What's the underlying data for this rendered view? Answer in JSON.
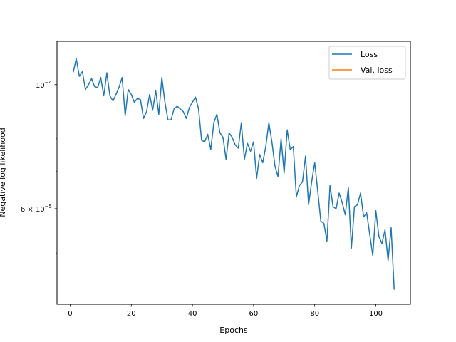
{
  "chart_data": {
    "type": "line",
    "title": "",
    "xlabel": "Epochs",
    "ylabel": "Negative log likelihood",
    "yscale": "log",
    "xlim": [
      -4.3,
      111.3
    ],
    "ylim": [
      4.05e-05,
      0.0001195
    ],
    "xticks": [
      0,
      20,
      40,
      60,
      80,
      100
    ],
    "xtick_labels": [
      "0",
      "20",
      "40",
      "60",
      "80",
      "100"
    ],
    "yticks": [
      0.0001,
      6e-05
    ],
    "ytick_labels": [
      {
        "base": "10",
        "exp": "−4"
      },
      {
        "base": "6 × 10",
        "exp": "−5"
      }
    ],
    "grid": false,
    "legend": {
      "position": "top-right",
      "entries": [
        {
          "label": "Loss",
          "color": "#1f77b4"
        },
        {
          "label": "Val. loss",
          "color": "#ff7f0e"
        }
      ]
    },
    "series": [
      {
        "name": "Loss",
        "color": "#1f77b4",
        "x": [
          1,
          2,
          3,
          4,
          5,
          6,
          7,
          8,
          9,
          10,
          11,
          12,
          13,
          14,
          15,
          16,
          17,
          18,
          19,
          20,
          21,
          22,
          23,
          24,
          25,
          26,
          27,
          28,
          29,
          30,
          31,
          32,
          33,
          34,
          35,
          36,
          37,
          38,
          39,
          40,
          41,
          42,
          43,
          44,
          45,
          46,
          47,
          48,
          49,
          50,
          51,
          52,
          53,
          54,
          55,
          56,
          57,
          58,
          59,
          60,
          61,
          62,
          63,
          64,
          65,
          66,
          67,
          68,
          69,
          70,
          71,
          72,
          73,
          74,
          75,
          76,
          77,
          78,
          79,
          80,
          81,
          82,
          83,
          84,
          85,
          86,
          87,
          88,
          89,
          90,
          91,
          92,
          93,
          94,
          95,
          96,
          97,
          98,
          99,
          100,
          101,
          102,
          103,
          104,
          105,
          106
        ],
        "y": [
          0.0001052,
          0.0001113,
          0.0001035,
          0.0001055,
          9.8e-05,
          0.0001,
          0.0001025,
          9.92e-05,
          9.88e-05,
          0.000103,
          9.55e-05,
          0.000105,
          9.55e-05,
          9.35e-05,
          9.6e-05,
          9.9e-05,
          0.000103,
          8.8e-05,
          9.8e-05,
          9.6e-05,
          9.3e-05,
          9.45e-05,
          9.4e-05,
          8.7e-05,
          8.95e-05,
          9.6e-05,
          9e-05,
          9.75e-05,
          8.85e-05,
          0.000103,
          9.3e-05,
          8.65e-05,
          8.65e-05,
          9.05e-05,
          9.15e-05,
          9.05e-05,
          8.95e-05,
          8.7e-05,
          9.1e-05,
          9.3e-05,
          9.5e-05,
          9.05e-05,
          7.95e-05,
          7.9e-05,
          8.15e-05,
          7.65e-05,
          8.55e-05,
          8.85e-05,
          8.2e-05,
          8.05e-05,
          7.35e-05,
          8.2e-05,
          8.05e-05,
          7.8e-05,
          7.7e-05,
          8.55e-05,
          7.35e-05,
          7.85e-05,
          7.6e-05,
          7.9e-05,
          6.8e-05,
          7.5e-05,
          7.25e-05,
          7.75e-05,
          8.55e-05,
          7.9e-05,
          7.15e-05,
          6.85e-05,
          8e-05,
          6.95e-05,
          8.3e-05,
          7.65e-05,
          7.75e-05,
          6.3e-05,
          6.6e-05,
          6.7e-05,
          7.45e-05,
          6.1e-05,
          6.7e-05,
          7.25e-05,
          6.45e-05,
          5.7e-05,
          5.65e-05,
          5.25e-05,
          6.6e-05,
          6.05e-05,
          6e-05,
          6.4e-05,
          6.15e-05,
          5.85e-05,
          6.55e-05,
          5.1e-05,
          6.05e-05,
          6.1e-05,
          6.4e-05,
          5.8e-05,
          5.9e-05,
          5.4e-05,
          4.95e-05,
          5.95e-05,
          5.35e-05,
          5.2e-05,
          5.5e-05,
          4.85e-05,
          5.55e-05,
          4.3e-05
        ]
      },
      {
        "name": "Val. loss",
        "color": "#ff7f0e",
        "x": [],
        "y": []
      }
    ]
  }
}
